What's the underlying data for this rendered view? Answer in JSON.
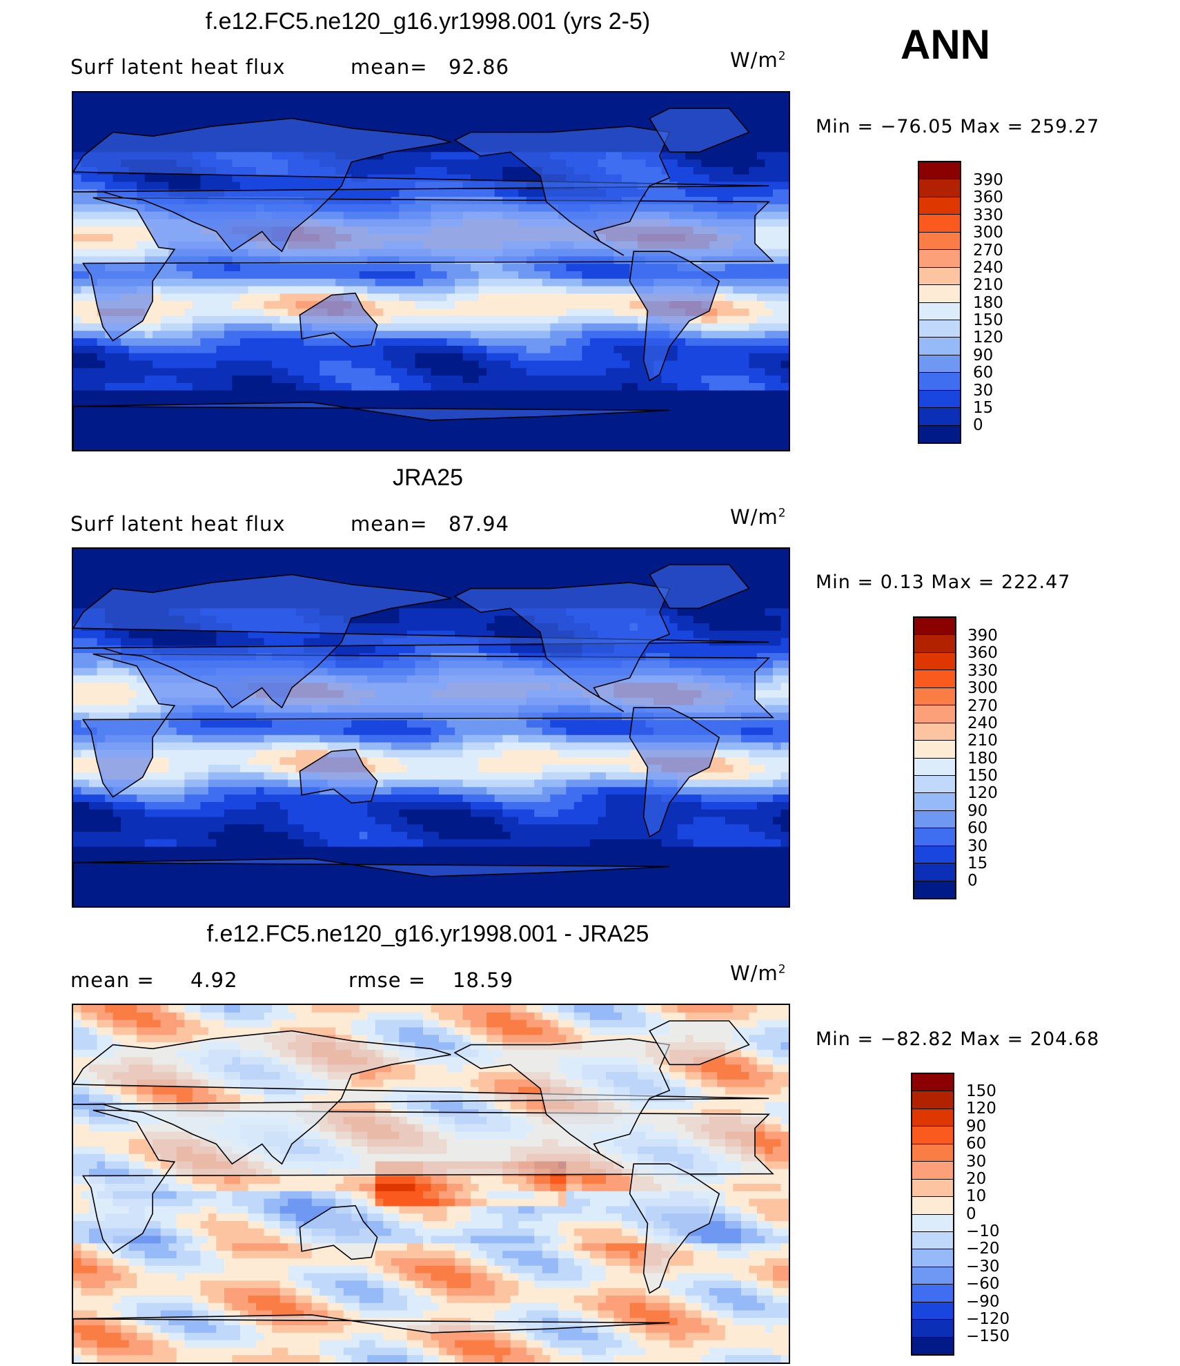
{
  "season": "ANN",
  "units_base": "W/m",
  "units_exp": "2",
  "panels": [
    {
      "title": "f.e12.FC5.ne120_g16.yr1998.001 (yrs 2-5)",
      "left_label": "Surf  latent  heat  flux",
      "stat_label": "mean=",
      "stat_value": "92.86",
      "minmax": "Min  =  −76.05  Max  =  259.27",
      "colorbar_labels": [
        "390",
        "360",
        "330",
        "300",
        "270",
        "240",
        "210",
        "180",
        "150",
        "120",
        "90",
        "60",
        "30",
        "15",
        "0"
      ]
    },
    {
      "title": "JRA25",
      "left_label": "Surf  latent  heat  flux",
      "stat_label": "mean=",
      "stat_value": "87.94",
      "minmax": "Min  =     0.13  Max  =  222.47",
      "colorbar_labels": [
        "390",
        "360",
        "330",
        "300",
        "270",
        "240",
        "210",
        "180",
        "150",
        "120",
        "90",
        "60",
        "30",
        "15",
        "0"
      ]
    },
    {
      "title": "f.e12.FC5.ne120_g16.yr1998.001 - JRA25",
      "left_label": "mean  =",
      "left_value": "4.92",
      "stat_label": "rmse  =",
      "stat_value": "18.59",
      "minmax": "Min  =  −82.82  Max  =  204.68",
      "colorbar_labels": [
        "150",
        "120",
        "90",
        "60",
        "30",
        "20",
        "10",
        "0",
        "−10",
        "−20",
        "−30",
        "−60",
        "−90",
        "−120",
        "−150"
      ]
    }
  ],
  "colors": {
    "abs_scale": [
      "#8b0000",
      "#b22200",
      "#de3800",
      "#fa5a1e",
      "#fa7d46",
      "#fba078",
      "#fcc4a0",
      "#fdebd6",
      "#dcecfa",
      "#c0d8fa",
      "#96b9f8",
      "#6e98f2",
      "#3f6ff0",
      "#1a46e0",
      "#0c2fb8",
      "#001a88"
    ],
    "diff_scale": [
      "#8b0000",
      "#b22200",
      "#de3800",
      "#fa5a1e",
      "#fa7d46",
      "#fba078",
      "#fcc4a0",
      "#fdebd6",
      "#dcecfa",
      "#c0d8fa",
      "#96b9f8",
      "#6e98f2",
      "#3f6ff0",
      "#1a46e0",
      "#0c2fb8",
      "#001a88"
    ]
  }
}
